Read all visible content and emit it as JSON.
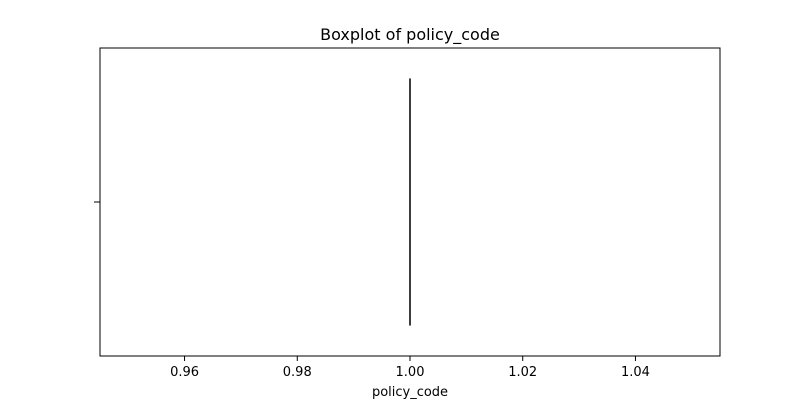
{
  "chart_data": {
    "type": "box",
    "title": "Boxplot of policy_code",
    "xlabel": "policy_code",
    "ylabel": "",
    "xlim": [
      0.945,
      1.055
    ],
    "xticks": [
      0.96,
      0.98,
      1.0,
      1.02,
      1.04
    ],
    "xtick_labels": [
      "0.96",
      "0.98",
      "1.00",
      "1.02",
      "1.04"
    ],
    "grid": false,
    "orientation": "horizontal",
    "box": {
      "min": 1.0,
      "q1": 1.0,
      "median": 1.0,
      "q3": 1.0,
      "max": 1.0
    },
    "colors": {
      "box_line": "#3d3d3d",
      "axes": "#000000"
    }
  }
}
